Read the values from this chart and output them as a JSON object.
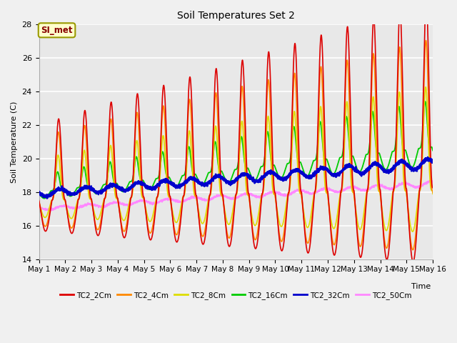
{
  "title": "Soil Temperatures Set 2",
  "xlabel": "Time",
  "ylabel": "Soil Temperature (C)",
  "ylim": [
    14,
    28
  ],
  "xlim": [
    0,
    15
  ],
  "xtick_labels": [
    "May 1",
    "May 2",
    "May 3",
    "May 4",
    "May 5",
    "May 6",
    "May 7",
    "May 8",
    "May 9",
    "May 10",
    "May 11",
    "May 12",
    "May 13",
    "May 14",
    "May 15",
    "May 16"
  ],
  "ytick_values": [
    14,
    16,
    18,
    20,
    22,
    24,
    26,
    28
  ],
  "series": [
    {
      "label": "TC2_2Cm",
      "color": "#dd0000",
      "lw": 1.2
    },
    {
      "label": "TC2_4Cm",
      "color": "#ff8800",
      "lw": 1.2
    },
    {
      "label": "TC2_8Cm",
      "color": "#dddd00",
      "lw": 1.2
    },
    {
      "label": "TC2_16Cm",
      "color": "#00cc00",
      "lw": 1.3
    },
    {
      "label": "TC2_32Cm",
      "color": "#0000cc",
      "lw": 1.8
    },
    {
      "label": "TC2_50Cm",
      "color": "#ff88ff",
      "lw": 1.2
    }
  ],
  "legend_label": "SI_met",
  "legend_bg": "#ffffcc",
  "legend_border": "#999900",
  "legend_text_color": "#880000",
  "plot_bg": "#e8e8e8",
  "fig_bg": "#f0f0f0"
}
